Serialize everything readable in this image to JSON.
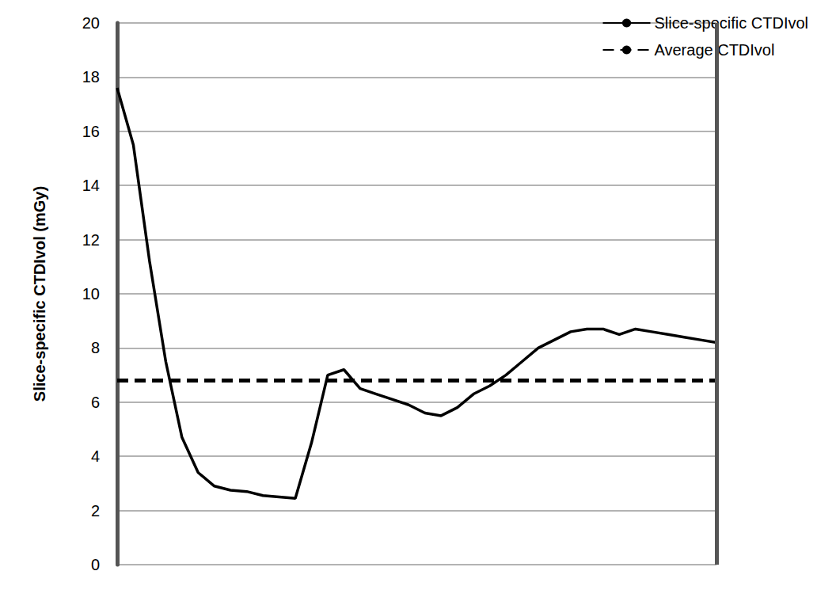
{
  "chart_data": {
    "type": "line",
    "y_label": "Slice-specific CTDIvol (mGy)",
    "categories": [
      null,
      null,
      null,
      null,
      null,
      null,
      null,
      null,
      null,
      null,
      null,
      null,
      null,
      null,
      null,
      null,
      null,
      null,
      null,
      null,
      null,
      null,
      null,
      null,
      null,
      null,
      null,
      null,
      null,
      null,
      null,
      null,
      null,
      null,
      null,
      null,
      null,
      null
    ],
    "series": [
      {
        "name": "Slice-specific CTDIvol",
        "color": "#000000",
        "line_style": "solid",
        "marker": "none",
        "values": [
          17.6,
          15.5,
          11.2,
          7.5,
          4.7,
          3.4,
          2.9,
          2.75,
          2.7,
          2.55,
          2.5,
          2.45,
          4.5,
          7.0,
          7.2,
          6.5,
          6.3,
          6.1,
          5.9,
          5.6,
          5.5,
          5.8,
          6.3,
          6.6,
          7.0,
          7.5,
          8.0,
          8.3,
          8.6,
          8.7,
          8.7,
          8.5,
          8.7,
          8.6,
          8.5,
          8.4,
          8.3,
          8.2
        ]
      },
      {
        "name": "Average CTDIvol",
        "color": "#000000",
        "line_style": "dashed",
        "marker": "none",
        "values": [
          6.8,
          6.8,
          6.8,
          6.8,
          6.8,
          6.8,
          6.8,
          6.8,
          6.8,
          6.8,
          6.8,
          6.8,
          6.8,
          6.8,
          6.8,
          6.8,
          6.8,
          6.8,
          6.8,
          6.8,
          6.8,
          6.8,
          6.8,
          6.8,
          6.8,
          6.8,
          6.8,
          6.8,
          6.8,
          6.8,
          6.8,
          6.8,
          6.8,
          6.8,
          6.8,
          6.8,
          6.8,
          6.8
        ]
      }
    ],
    "ylim": [
      0,
      20
    ],
    "yticks": [
      0,
      2,
      4,
      6,
      8,
      10,
      12,
      14,
      16,
      18,
      20
    ],
    "grid": true,
    "legend": "top-right",
    "tick_labels": "y"
  }
}
